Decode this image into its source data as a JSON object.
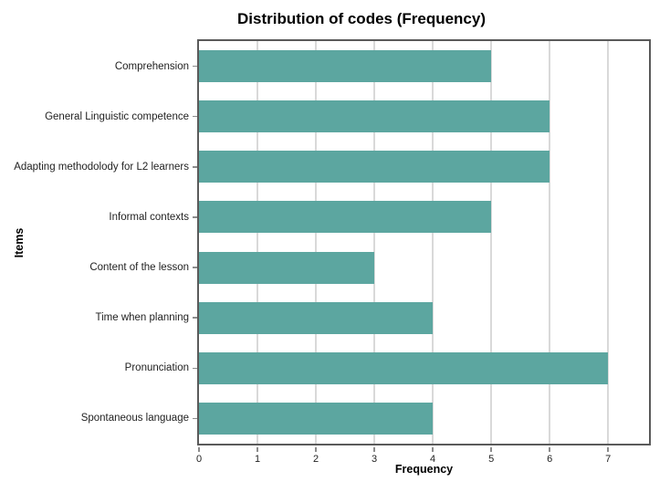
{
  "chart_data": {
    "type": "bar",
    "orientation": "horizontal",
    "title": "Distribution of codes (Frequency)",
    "categories": [
      "Comprehension",
      "General Linguistic competence",
      "Adapting methodolody for L2 learners",
      "Informal contexts",
      "Content of the lesson",
      "Time when planning",
      "Pronunciation",
      "Spontaneous language"
    ],
    "values": [
      5,
      6,
      6,
      5,
      3,
      4,
      7,
      4
    ],
    "xlabel": "Frequency",
    "ylabel": "Items",
    "xlim": [
      0,
      7.7
    ],
    "xticks": [
      0,
      1,
      2,
      3,
      4,
      5,
      6,
      7
    ],
    "grid": "vertical gridlines at integer ticks",
    "legend": "none",
    "bar_color": "#5CA6A0",
    "gridline_color": "#D9D9D9",
    "border_color": "#5A5A5A",
    "tick_color": "#8C8C8C",
    "text_color": "#1F1F1F"
  }
}
